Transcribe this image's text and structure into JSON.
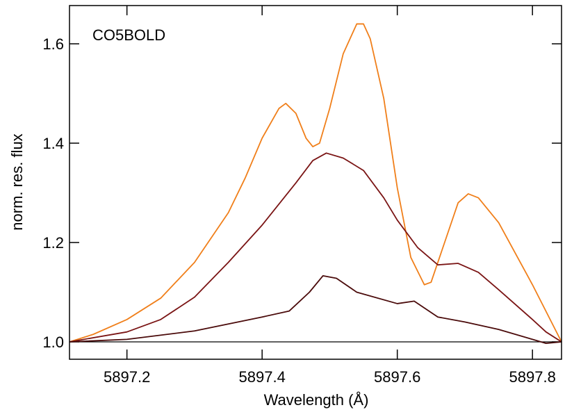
{
  "chart_data": {
    "type": "line",
    "annotation": "CO5BOLD",
    "xlabel": "Wavelength (Å)",
    "ylabel": "norm. res. flux",
    "xlim": [
      5897.115,
      5897.843
    ],
    "ylim": [
      0.965,
      1.677
    ],
    "xticks": [
      5897.2,
      5897.4,
      5897.6,
      5897.8
    ],
    "yticks": [
      {
        "value": 1,
        "label": "1.0"
      },
      1.2,
      1.4,
      1.6
    ],
    "grid": false,
    "hline": 1,
    "hline_color": "#000000",
    "series": [
      {
        "color": "#f07f1a",
        "x": [
          5897.115,
          5897.15,
          5897.2,
          5897.25,
          5897.3,
          5897.35,
          5897.375,
          5897.4,
          5897.425,
          5897.435,
          5897.45,
          5897.465,
          5897.475,
          5897.485,
          5897.5,
          5897.52,
          5897.54,
          5897.55,
          5897.56,
          5897.58,
          5897.6,
          5897.62,
          5897.64,
          5897.65,
          5897.67,
          5897.69,
          5897.705,
          5897.72,
          5897.75,
          5897.8,
          5897.843
        ],
        "values": [
          1.0,
          1.015,
          1.045,
          1.088,
          1.16,
          1.26,
          1.33,
          1.41,
          1.47,
          1.48,
          1.46,
          1.41,
          1.393,
          1.4,
          1.47,
          1.58,
          1.64,
          1.64,
          1.61,
          1.49,
          1.31,
          1.17,
          1.115,
          1.12,
          1.2,
          1.28,
          1.298,
          1.29,
          1.24,
          1.115,
          1.0
        ]
      },
      {
        "color": "#7a1414",
        "x": [
          5897.115,
          5897.2,
          5897.25,
          5897.3,
          5897.35,
          5897.4,
          5897.45,
          5897.475,
          5897.495,
          5897.52,
          5897.55,
          5897.58,
          5897.6,
          5897.63,
          5897.66,
          5897.69,
          5897.72,
          5897.75,
          5897.8,
          5897.82,
          5897.843
        ],
        "values": [
          1.0,
          1.02,
          1.045,
          1.09,
          1.16,
          1.235,
          1.32,
          1.365,
          1.38,
          1.37,
          1.345,
          1.29,
          1.245,
          1.19,
          1.155,
          1.158,
          1.14,
          1.105,
          1.045,
          1.02,
          1.0
        ]
      },
      {
        "color": "#4a0a0a",
        "x": [
          5897.115,
          5897.2,
          5897.3,
          5897.4,
          5897.44,
          5897.47,
          5897.49,
          5897.51,
          5897.54,
          5897.6,
          5897.625,
          5897.66,
          5897.7,
          5897.75,
          5897.8,
          5897.82,
          5897.843
        ],
        "values": [
          1.0,
          1.005,
          1.022,
          1.05,
          1.062,
          1.1,
          1.133,
          1.128,
          1.1,
          1.077,
          1.082,
          1.05,
          1.04,
          1.025,
          1.005,
          0.997,
          1.0
        ]
      }
    ]
  }
}
